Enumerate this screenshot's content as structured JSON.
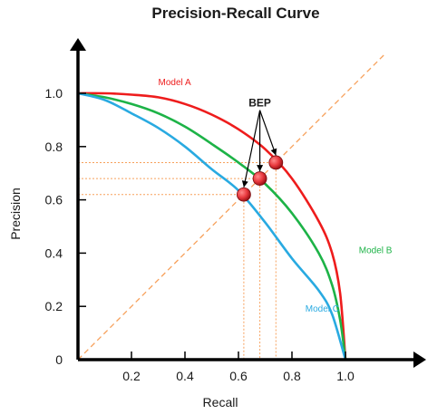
{
  "chart_data": {
    "type": "line",
    "title": "Precision-Recall Curve",
    "xlabel": "Recall",
    "ylabel": "Precision",
    "xlim": [
      0,
      1.25
    ],
    "ylim": [
      0,
      1.13
    ],
    "x_ticks": [
      {
        "value": 0.2,
        "label": "0.2"
      },
      {
        "value": 0.4,
        "label": "0.4"
      },
      {
        "value": 0.6,
        "label": "0.6"
      },
      {
        "value": 0.8,
        "label": "0.8"
      },
      {
        "value": 1.0,
        "label": "1.0"
      }
    ],
    "y_ticks": [
      {
        "value": 0,
        "label": "0"
      },
      {
        "value": 0.2,
        "label": "0.2"
      },
      {
        "value": 0.4,
        "label": "0.4"
      },
      {
        "value": 0.6,
        "label": "0.6"
      },
      {
        "value": 0.8,
        "label": "0.8"
      },
      {
        "value": 1.0,
        "label": "1.0"
      }
    ],
    "series": [
      {
        "name": "Model A",
        "color": "#ee1c1c",
        "points": [
          [
            0,
            1.0
          ],
          [
            0.1,
            1.0
          ],
          [
            0.2,
            0.995
          ],
          [
            0.3,
            0.985
          ],
          [
            0.4,
            0.96
          ],
          [
            0.5,
            0.92
          ],
          [
            0.6,
            0.865
          ],
          [
            0.7,
            0.79
          ],
          [
            0.8,
            0.68
          ],
          [
            0.9,
            0.52
          ],
          [
            0.95,
            0.4
          ],
          [
            0.98,
            0.25
          ],
          [
            1.0,
            0.0
          ]
        ]
      },
      {
        "name": "Model B",
        "color": "#1db347",
        "points": [
          [
            0,
            1.0
          ],
          [
            0.1,
            0.985
          ],
          [
            0.2,
            0.96
          ],
          [
            0.3,
            0.925
          ],
          [
            0.4,
            0.875
          ],
          [
            0.5,
            0.81
          ],
          [
            0.6,
            0.74
          ],
          [
            0.7,
            0.66
          ],
          [
            0.8,
            0.55
          ],
          [
            0.9,
            0.4
          ],
          [
            0.95,
            0.28
          ],
          [
            0.98,
            0.15
          ],
          [
            1.0,
            0.0
          ]
        ]
      },
      {
        "name": "Model C",
        "color": "#29aae1",
        "points": [
          [
            0,
            1.0
          ],
          [
            0.1,
            0.975
          ],
          [
            0.2,
            0.925
          ],
          [
            0.3,
            0.87
          ],
          [
            0.4,
            0.8
          ],
          [
            0.5,
            0.715
          ],
          [
            0.6,
            0.635
          ],
          [
            0.7,
            0.515
          ],
          [
            0.8,
            0.38
          ],
          [
            0.9,
            0.26
          ],
          [
            0.95,
            0.17
          ],
          [
            1.0,
            0.0
          ]
        ]
      }
    ],
    "reference_line": {
      "from": [
        0,
        0
      ],
      "to": [
        1.15,
        1.15
      ],
      "color": "#f7a15c",
      "style": "dashed"
    },
    "break_even_points": [
      {
        "x": 0.62,
        "y": 0.62
      },
      {
        "x": 0.68,
        "y": 0.68
      },
      {
        "x": 0.74,
        "y": 0.74
      }
    ],
    "annotation": {
      "text": "BEP",
      "x": 0.68,
      "y": 0.95
    },
    "series_labels": [
      {
        "text": "Model A",
        "x": 0.3,
        "y": 1.03
      },
      {
        "text": "Model B",
        "x": 1.05,
        "y": 0.4
      },
      {
        "text": "Model C",
        "x": 0.85,
        "y": 0.18
      }
    ],
    "grid": false,
    "legend": "none",
    "marker_color": "#e8383d"
  }
}
